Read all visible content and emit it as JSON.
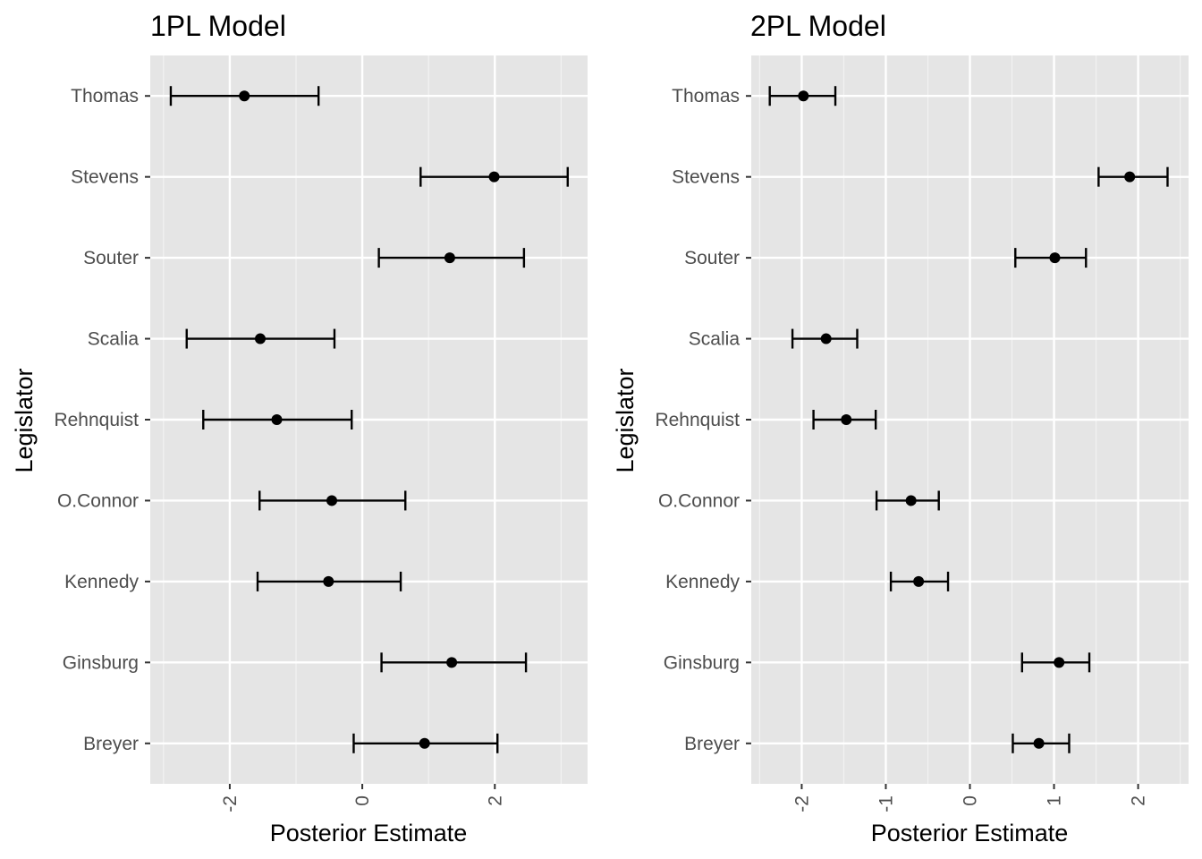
{
  "chart_data": [
    {
      "type": "errorbar",
      "title": "1PL Model",
      "xlabel": "Posterior Estimate",
      "ylabel": "Legislator",
      "xlim": [
        -3.2,
        3.4
      ],
      "x_ticks": [
        -2,
        0,
        2
      ],
      "x_tick_labels": [
        "-2",
        "0",
        "2"
      ],
      "categories": [
        "Thomas",
        "Stevens",
        "Souter",
        "Scalia",
        "Rehnquist",
        "O.Connor",
        "Kennedy",
        "Ginsburg",
        "Breyer"
      ],
      "estimates": [
        -1.78,
        1.99,
        1.32,
        -1.54,
        -1.29,
        -0.46,
        -0.51,
        1.35,
        0.94
      ],
      "lower": [
        -2.89,
        0.88,
        0.25,
        -2.65,
        -2.4,
        -1.55,
        -1.58,
        0.29,
        -0.13
      ],
      "upper": [
        -0.66,
        3.1,
        2.44,
        -0.42,
        -0.16,
        0.65,
        0.58,
        2.47,
        2.04
      ],
      "grid": true
    },
    {
      "type": "errorbar",
      "title": "2PL Model",
      "xlabel": "Posterior Estimate",
      "ylabel": "Legislator",
      "xlim": [
        -2.6,
        2.6
      ],
      "x_ticks": [
        -2,
        -1,
        0,
        1,
        2
      ],
      "x_tick_labels": [
        "-2",
        "-1",
        "0",
        "1",
        "2"
      ],
      "categories": [
        "Thomas",
        "Stevens",
        "Souter",
        "Scalia",
        "Rehnquist",
        "O.Connor",
        "Kennedy",
        "Ginsburg",
        "Breyer"
      ],
      "estimates": [
        -1.98,
        1.9,
        1.01,
        -1.71,
        -1.47,
        -0.7,
        -0.61,
        1.06,
        0.82
      ],
      "lower": [
        -2.38,
        1.53,
        0.54,
        -2.11,
        -1.86,
        -1.11,
        -0.94,
        0.62,
        0.51
      ],
      "upper": [
        -1.6,
        2.35,
        1.38,
        -1.34,
        -1.12,
        -0.37,
        -0.26,
        1.42,
        1.18
      ],
      "grid": true
    }
  ]
}
